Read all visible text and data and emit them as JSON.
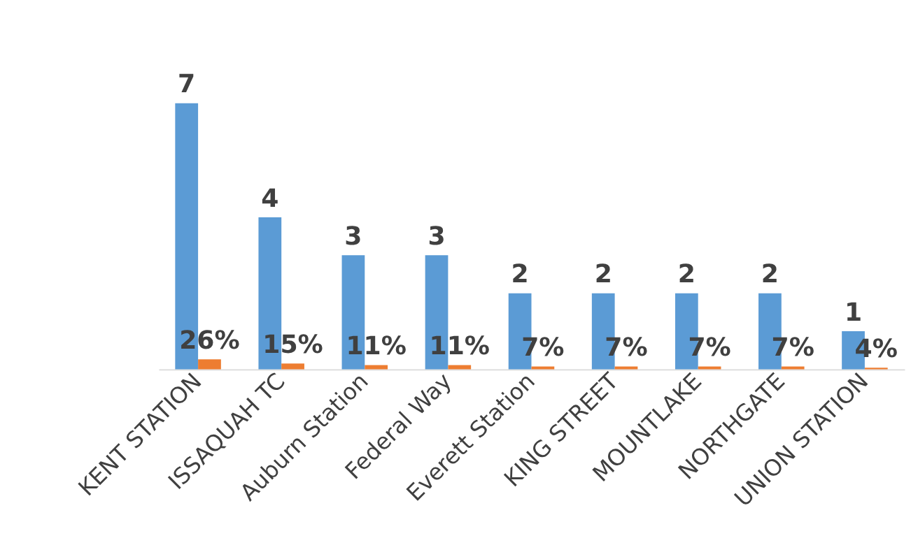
{
  "chart_data": {
    "type": "bar",
    "categories": [
      "KENT STATION",
      "ISSAQUAH TC",
      "Auburn Station",
      "Federal Way",
      "Everett Station",
      "KING STREET",
      "MOUNTLAKE",
      "NORTHGATE",
      "UNION STATION"
    ],
    "series": [
      {
        "color": "#5b9bd5",
        "values": [
          7,
          4,
          3,
          3,
          2,
          2,
          2,
          2,
          1
        ],
        "value_labels": [
          "7",
          "4",
          "3",
          "3",
          "2",
          "2",
          "2",
          "2",
          "1"
        ]
      },
      {
        "color": "#ed7d31",
        "values": [
          0.26,
          0.15,
          0.11,
          0.11,
          0.07,
          0.07,
          0.07,
          0.07,
          0.04
        ],
        "value_labels": [
          "26%",
          "15%",
          "11%",
          "11%",
          "7%",
          "7%",
          "7%",
          "7%",
          "4%"
        ]
      }
    ],
    "grid": false,
    "legend": false
  }
}
